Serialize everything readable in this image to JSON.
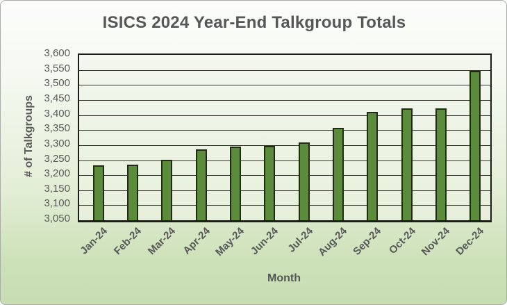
{
  "chart_data": {
    "type": "bar",
    "title": "ISICS 2024 Year-End Talkgroup Totals",
    "xlabel": "Month",
    "ylabel": "# of Talkgroups",
    "categories": [
      "Jan-24",
      "Feb-24",
      "Mar-24",
      "Apr-24",
      "May-24",
      "Jun-24",
      "Jul-24",
      "Aug-24",
      "Sep-24",
      "Oct-24",
      "Nov-24",
      "Dec-24"
    ],
    "values": [
      3233,
      3236,
      3252,
      3285,
      3294,
      3297,
      3309,
      3358,
      3410,
      3422,
      3422,
      3547
    ],
    "ylim": [
      3050,
      3600
    ],
    "ytick_step": 50,
    "y_tick_labels": [
      "3,600",
      "3,550",
      "3,500",
      "3,450",
      "3,400",
      "3,350",
      "3,300",
      "3,250",
      "3,200",
      "3,150",
      "3,100",
      "3,050"
    ],
    "grid": true,
    "legend": "none",
    "colors": {
      "bar_fill": "#5a8c3c",
      "bar_border": "#1f2b13",
      "text": "#595959",
      "gridline": "#32322a",
      "plot_fill_top": "#f3f7ef",
      "plot_fill_bottom": "#e7f0dc",
      "background_top": "#fcfdfb",
      "background_bottom": "#c7ddb2"
    }
  }
}
